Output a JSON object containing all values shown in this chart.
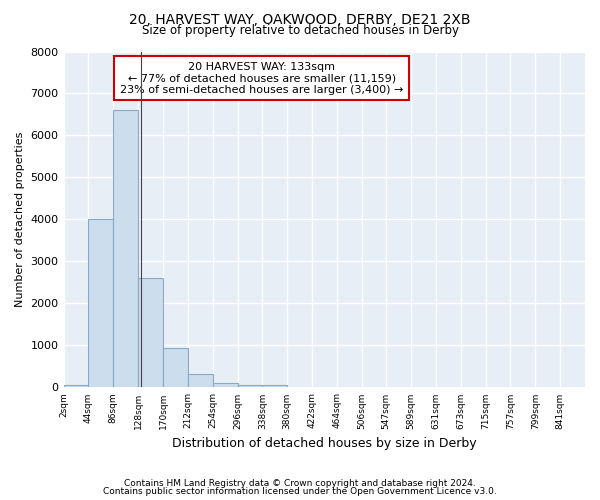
{
  "title": "20, HARVEST WAY, OAKWOOD, DERBY, DE21 2XB",
  "subtitle": "Size of property relative to detached houses in Derby",
  "xlabel": "Distribution of detached houses by size in Derby",
  "ylabel": "Number of detached properties",
  "bar_color": "#ccdded",
  "bar_edge_color": "#88aac8",
  "background_color": "#e8eef6",
  "grid_color": "#ffffff",
  "ylim": [
    0,
    8000
  ],
  "bin_labels": [
    "2sqm",
    "44sqm",
    "86sqm",
    "128sqm",
    "170sqm",
    "212sqm",
    "254sqm",
    "296sqm",
    "338sqm",
    "380sqm",
    "422sqm",
    "464sqm",
    "506sqm",
    "547sqm",
    "589sqm",
    "631sqm",
    "673sqm",
    "715sqm",
    "757sqm",
    "799sqm",
    "841sqm"
  ],
  "bin_starts": [
    2,
    44,
    86,
    128,
    170,
    212,
    254,
    296,
    338,
    380,
    422,
    464,
    506,
    547,
    589,
    631,
    673,
    715,
    757,
    799,
    841
  ],
  "bin_width": 42,
  "values": [
    60,
    4000,
    6600,
    2600,
    950,
    320,
    100,
    60,
    60,
    0,
    0,
    0,
    0,
    0,
    0,
    0,
    0,
    0,
    0,
    0,
    0
  ],
  "property_size": 133,
  "annotation_line1": "20 HARVEST WAY: 133sqm",
  "annotation_line2": "← 77% of detached houses are smaller (11,159)",
  "annotation_line3": "23% of semi-detached houses are larger (3,400) →",
  "annotation_box_color": "#cc0000",
  "footnote1": "Contains HM Land Registry data © Crown copyright and database right 2024.",
  "footnote2": "Contains public sector information licensed under the Open Government Licence v3.0."
}
